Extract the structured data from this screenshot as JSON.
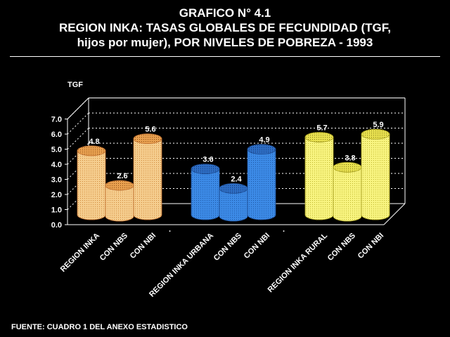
{
  "title_lines": [
    "GRAFICO N° 4.1",
    "REGION INKA: TASAS GLOBALES DE FECUNDIDAD (TGF,",
    "hijos por mujer), POR NIVELES DE POBREZA - 1993"
  ],
  "footer": "FUENTE: CUADRO 1  DEL ANEXO ESTADISTICO",
  "colors": {
    "orange_fill": "#f2c27a",
    "orange_top": "#d98a3a",
    "blue_fill": "#3a86e0",
    "blue_top": "#2a5fb0",
    "yellow_fill": "#f7f37a",
    "yellow_top": "#d8d040"
  },
  "chart_data": {
    "type": "bar",
    "style": "3d-cylinder",
    "ylabel": "TGF",
    "ylim": [
      0,
      7
    ],
    "yticks": [
      "0.0",
      "1.0",
      "2.0",
      "3.0",
      "4.0",
      "5.0",
      "6.0",
      "7.0"
    ],
    "grid": true,
    "categories": [
      "REGION INKA",
      "CON NBS",
      "CON NBI",
      "REGION INKA URBANA",
      "CON NBS",
      "CON NBI",
      "REGION INKA RURAL",
      "CON NBS",
      "CON NBI"
    ],
    "values": [
      4.8,
      2.6,
      5.6,
      3.6,
      2.4,
      4.9,
      5.7,
      3.8,
      5.9
    ],
    "value_labels": [
      "4.8",
      "2.6",
      "5.6",
      "3.6",
      "2.4",
      "4.9",
      "5.7",
      "3.8",
      "5.9"
    ],
    "bar_colors": [
      "orange",
      "orange",
      "orange",
      "blue",
      "blue",
      "blue",
      "yellow",
      "yellow",
      "yellow"
    ],
    "group_separators": [
      ".",
      "."
    ]
  }
}
